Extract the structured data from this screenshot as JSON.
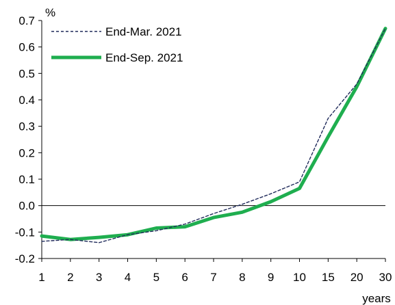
{
  "chart_data": {
    "type": "line",
    "ylabel": "%",
    "xlabel": "years",
    "categories": [
      "1",
      "2",
      "3",
      "4",
      "5",
      "6",
      "7",
      "8",
      "9",
      "10",
      "15",
      "20",
      "30"
    ],
    "yticks": [
      "0.7",
      "0.6",
      "0.5",
      "0.4",
      "0.3",
      "0.2",
      "0.1",
      "0.0",
      "-0.1",
      "-0.2"
    ],
    "ylim": [
      -0.2,
      0.7
    ],
    "grid": false,
    "legend_position": "top-left",
    "series": [
      {
        "name": "End-Mar. 2021",
        "style": "dashed",
        "color": "#1f2a5a",
        "values": [
          -0.135,
          -0.128,
          -0.14,
          -0.11,
          -0.095,
          -0.07,
          -0.03,
          0.005,
          0.045,
          0.09,
          0.33,
          0.46,
          0.67
        ]
      },
      {
        "name": "End-Sep. 2021",
        "style": "solid",
        "color": "#1fae4f",
        "values": [
          -0.115,
          -0.128,
          -0.12,
          -0.11,
          -0.085,
          -0.08,
          -0.045,
          -0.025,
          0.015,
          0.065,
          0.26,
          0.45,
          0.67
        ]
      }
    ]
  }
}
